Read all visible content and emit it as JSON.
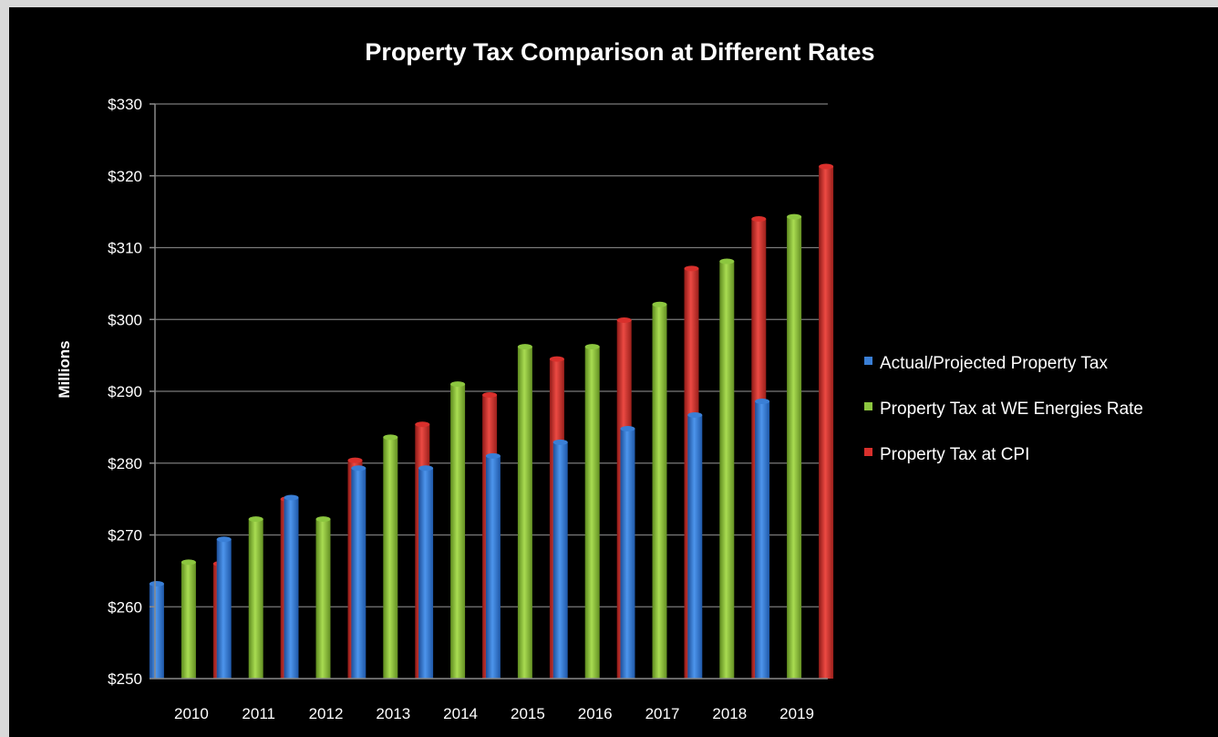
{
  "chart_data": {
    "type": "bar",
    "title": "Property Tax Comparison at Different Rates",
    "xlabel": "",
    "ylabel": "Millions",
    "ylim": [
      250,
      330
    ],
    "yticks": [
      250,
      260,
      270,
      280,
      290,
      300,
      310,
      320,
      330
    ],
    "ytick_labels": [
      "$250",
      "$260",
      "$270",
      "$280",
      "$290",
      "$300",
      "$310",
      "$320",
      "$330"
    ],
    "categories": [
      "2010",
      "2011",
      "2012",
      "2013",
      "2014",
      "2015",
      "2016",
      "2017",
      "2018",
      "2019"
    ],
    "grid": true,
    "legend_position": "right",
    "series": [
      {
        "name": "Actual/Projected Property Tax",
        "color": "#3a7fd6",
        "values": [
          263.2,
          269.4,
          275.2,
          279.3,
          279.3,
          281.0,
          282.9,
          284.8,
          286.7,
          288.6
        ]
      },
      {
        "name": "Property Tax at WE Energies Rate",
        "color": "#8cc63f",
        "values": [
          266.2,
          272.2,
          272.2,
          283.6,
          291.0,
          296.2,
          296.2,
          302.1,
          308.1,
          314.3
        ]
      },
      {
        "name": "Property Tax at CPI",
        "color": "#d9302c",
        "values": [
          266.0,
          275.0,
          280.4,
          285.4,
          289.5,
          294.5,
          299.9,
          307.1,
          314.0,
          321.3
        ]
      }
    ]
  }
}
